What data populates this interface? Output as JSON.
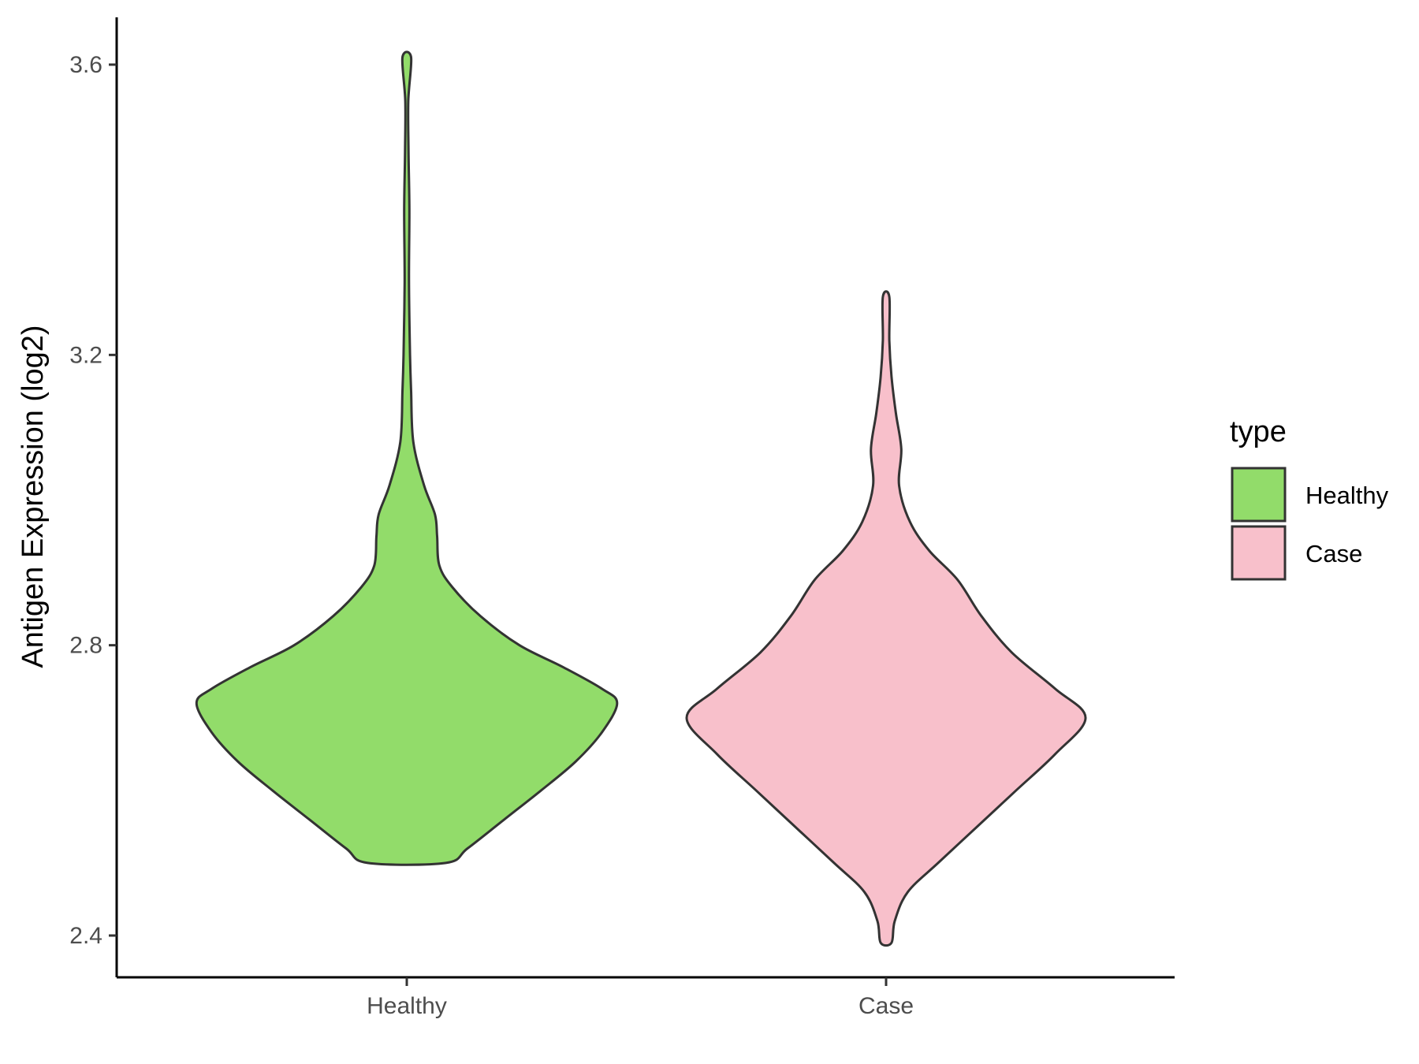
{
  "chart_data": {
    "type": "violin",
    "categories": [
      "Healthy",
      "Case"
    ],
    "ylabel": "Antigen Expression (log2)",
    "xlabel": "",
    "ylim": [
      2.33,
      3.67
    ],
    "yticks": [
      2.4,
      2.8,
      3.2,
      3.6
    ],
    "ytick_labels": [
      "2.4",
      "2.8",
      "3.2",
      "3.6"
    ],
    "grid": false,
    "legend": {
      "title": "type",
      "position": "right",
      "entries": [
        "Healthy",
        "Case"
      ]
    },
    "series": [
      {
        "name": "Healthy",
        "color": "#92DC6A",
        "y_range": [
          2.5,
          3.61
        ],
        "density_profile": [
          [
            2.5,
            0.18
          ],
          [
            2.52,
            0.28
          ],
          [
            2.56,
            0.45
          ],
          [
            2.6,
            0.62
          ],
          [
            2.64,
            0.78
          ],
          [
            2.68,
            0.9
          ],
          [
            2.72,
            0.97
          ],
          [
            2.74,
            0.9
          ],
          [
            2.77,
            0.72
          ],
          [
            2.8,
            0.52
          ],
          [
            2.84,
            0.34
          ],
          [
            2.88,
            0.21
          ],
          [
            2.91,
            0.15
          ],
          [
            2.95,
            0.14
          ],
          [
            2.98,
            0.13
          ],
          [
            3.02,
            0.08
          ],
          [
            3.08,
            0.03
          ],
          [
            3.15,
            0.02
          ],
          [
            3.2,
            0.015
          ],
          [
            3.3,
            0.01
          ],
          [
            3.4,
            0.012
          ],
          [
            3.48,
            0.008
          ],
          [
            3.55,
            0.007
          ],
          [
            3.61,
            0.02
          ]
        ]
      },
      {
        "name": "Case",
        "color": "#F8C0CB",
        "y_range": [
          2.39,
          3.28
        ],
        "density_profile": [
          [
            2.39,
            0.025
          ],
          [
            2.42,
            0.04
          ],
          [
            2.46,
            0.1
          ],
          [
            2.5,
            0.24
          ],
          [
            2.55,
            0.42
          ],
          [
            2.6,
            0.6
          ],
          [
            2.65,
            0.78
          ],
          [
            2.7,
            0.92
          ],
          [
            2.74,
            0.78
          ],
          [
            2.79,
            0.58
          ],
          [
            2.84,
            0.44
          ],
          [
            2.89,
            0.33
          ],
          [
            2.93,
            0.2
          ],
          [
            2.97,
            0.11
          ],
          [
            3.02,
            0.06
          ],
          [
            3.07,
            0.07
          ],
          [
            3.12,
            0.045
          ],
          [
            3.17,
            0.025
          ],
          [
            3.22,
            0.015
          ],
          [
            3.28,
            0.015
          ]
        ]
      }
    ]
  }
}
